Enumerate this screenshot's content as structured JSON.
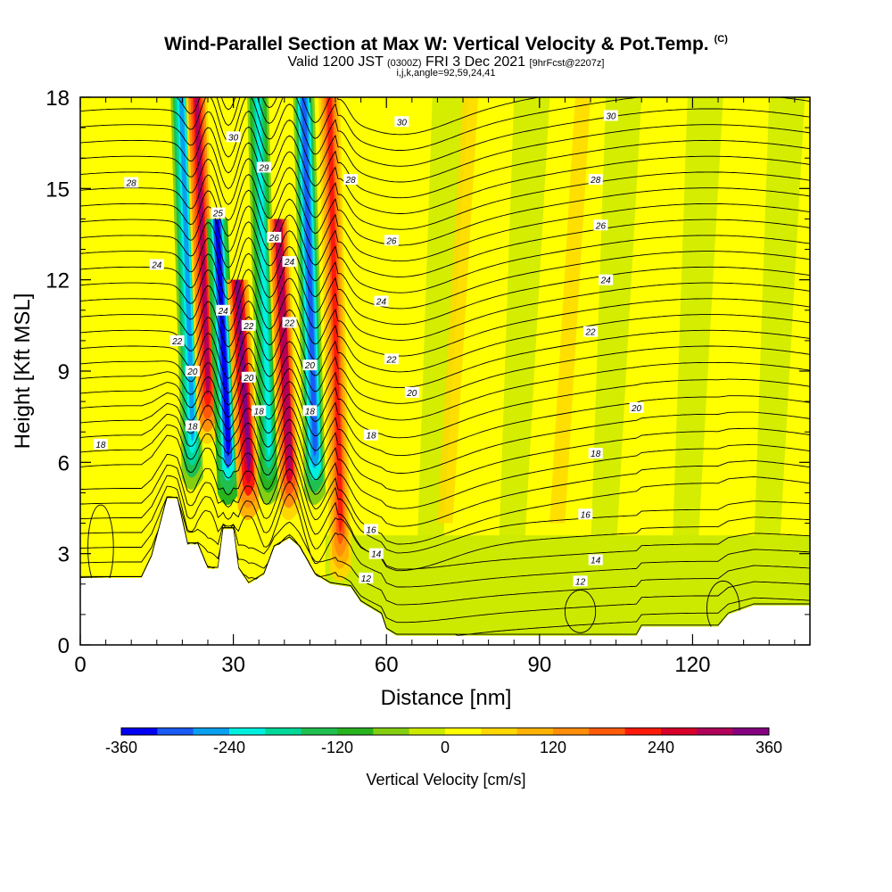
{
  "header": {
    "title": "Wind-Parallel Section at Max W: Vertical Velocity & Pot.Temp.",
    "title_mark": "(C)",
    "valid_prefix": "Valid 1200 JST",
    "valid_utc": "(0300Z)",
    "valid_date": "FRI 3 Dec 2021",
    "forecast": "[9hrFcst@2207z]",
    "indices": "i,j,k,angle=92,59,24,41"
  },
  "chart_data": {
    "type": "heatmap",
    "xlabel": "Distance [nm]",
    "ylabel": "Height [Kft MSL]",
    "xlim": [
      0,
      143
    ],
    "ylim": [
      0,
      18
    ],
    "x_ticks": [
      0,
      30,
      60,
      90,
      120
    ],
    "y_ticks": [
      0,
      3,
      6,
      9,
      12,
      15,
      18
    ],
    "colorbar": {
      "label": "Vertical Velocity [cm/s]",
      "range": [
        -360,
        360
      ],
      "tick_values": [
        -360,
        -240,
        -120,
        0,
        120,
        240,
        360
      ],
      "colors": [
        "#0000f5",
        "#1a5af5",
        "#0aa0f0",
        "#00f0e0",
        "#00d89a",
        "#20c050",
        "#28b41e",
        "#84cf12",
        "#ccea00",
        "#ffff00",
        "#ffd700",
        "#ffb300",
        "#ff8e0a",
        "#ff5a0a",
        "#ff1a0a",
        "#d8002a",
        "#b0005a",
        "#850080"
      ]
    },
    "wave_bands": [
      {
        "x": 22,
        "w": -270,
        "top": 18,
        "bottom": 5.5
      },
      {
        "x": 25,
        "w": 290,
        "top": 18,
        "bottom": 7
      },
      {
        "x": 29,
        "w": -350,
        "top": 14,
        "bottom": 5
      },
      {
        "x": 33,
        "w": 340,
        "top": 12,
        "bottom": 4.5
      },
      {
        "x": 37,
        "w": -240,
        "top": 18,
        "bottom": 5
      },
      {
        "x": 41,
        "w": 300,
        "top": 14,
        "bottom": 4.5
      },
      {
        "x": 46,
        "w": -320,
        "top": 18,
        "bottom": 5
      },
      {
        "x": 51,
        "w": 230,
        "top": 18,
        "bottom": 2.5
      }
    ],
    "contour_labels": [
      {
        "x": 10,
        "z": 15.2,
        "t": "28"
      },
      {
        "x": 15,
        "z": 12.5,
        "t": "24"
      },
      {
        "x": 19,
        "z": 10.0,
        "t": "22"
      },
      {
        "x": 22,
        "z": 9.0,
        "t": "20"
      },
      {
        "x": 22,
        "z": 7.2,
        "t": "18"
      },
      {
        "x": 4,
        "z": 6.6,
        "t": "18"
      },
      {
        "x": 28,
        "z": 11.0,
        "t": "24"
      },
      {
        "x": 27,
        "z": 14.2,
        "t": "25"
      },
      {
        "x": 30,
        "z": 16.7,
        "t": "30"
      },
      {
        "x": 33,
        "z": 10.5,
        "t": "22"
      },
      {
        "x": 33,
        "z": 8.8,
        "t": "20"
      },
      {
        "x": 35,
        "z": 7.7,
        "t": "18"
      },
      {
        "x": 36,
        "z": 15.7,
        "t": "29"
      },
      {
        "x": 38,
        "z": 13.4,
        "t": "26"
      },
      {
        "x": 41,
        "z": 12.6,
        "t": "24"
      },
      {
        "x": 41,
        "z": 10.6,
        "t": "22"
      },
      {
        "x": 45,
        "z": 9.2,
        "t": "20"
      },
      {
        "x": 45,
        "z": 7.7,
        "t": "18"
      },
      {
        "x": 53,
        "z": 15.3,
        "t": "28"
      },
      {
        "x": 61,
        "z": 13.3,
        "t": "26"
      },
      {
        "x": 59,
        "z": 11.3,
        "t": "24"
      },
      {
        "x": 61,
        "z": 9.4,
        "t": "22"
      },
      {
        "x": 65,
        "z": 8.3,
        "t": "20"
      },
      {
        "x": 57,
        "z": 6.9,
        "t": "18"
      },
      {
        "x": 57,
        "z": 3.8,
        "t": "16"
      },
      {
        "x": 58,
        "z": 3.0,
        "t": "14"
      },
      {
        "x": 56,
        "z": 2.2,
        "t": "12"
      },
      {
        "x": 63,
        "z": 17.2,
        "t": "30"
      },
      {
        "x": 104,
        "z": 17.4,
        "t": "30"
      },
      {
        "x": 101,
        "z": 15.3,
        "t": "28"
      },
      {
        "x": 102,
        "z": 13.8,
        "t": "26"
      },
      {
        "x": 103,
        "z": 12.0,
        "t": "24"
      },
      {
        "x": 100,
        "z": 10.3,
        "t": "22"
      },
      {
        "x": 109,
        "z": 7.8,
        "t": "20"
      },
      {
        "x": 101,
        "z": 6.3,
        "t": "18"
      },
      {
        "x": 99,
        "z": 4.3,
        "t": "16"
      },
      {
        "x": 101,
        "z": 2.8,
        "t": "14"
      },
      {
        "x": 98,
        "z": 2.1,
        "t": "12"
      }
    ]
  }
}
